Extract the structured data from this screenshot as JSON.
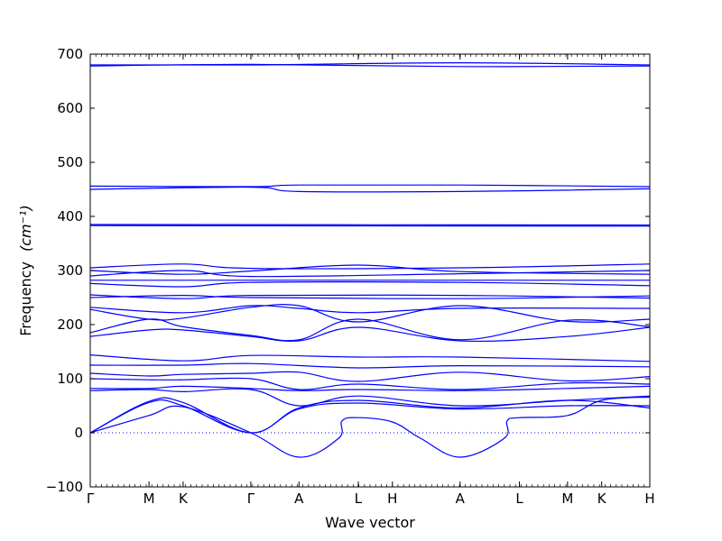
{
  "chart_data": {
    "type": "line",
    "xlabel": "Wave vector",
    "ylabel": "Frequency",
    "ylabel_unit": "(cm⁻¹)",
    "ylim": [
      -100,
      700
    ],
    "yticks": [
      -100,
      0,
      100,
      200,
      300,
      400,
      500,
      600,
      700
    ],
    "grid": false,
    "line_color": "#0000ff",
    "zero_line": {
      "y": 0,
      "style": "dotted"
    },
    "x_path_ticks": [
      {
        "label": "Γ",
        "x": 0.0
      },
      {
        "label": "M",
        "x": 0.105
      },
      {
        "label": "K",
        "x": 0.166
      },
      {
        "label": "Γ",
        "x": 0.287
      },
      {
        "label": "A",
        "x": 0.373
      },
      {
        "label": "L",
        "x": 0.479
      },
      {
        "label": "H",
        "x": 0.54
      },
      {
        "label": "A",
        "x": 0.661
      },
      {
        "label": "L",
        "x": 0.767
      },
      {
        "label": "M",
        "x": 0.853
      },
      {
        "label": "K",
        "x": 0.914
      },
      {
        "label": "H",
        "x": 1.0
      }
    ],
    "series": [
      {
        "values": [
          [
            0,
            680
          ],
          [
            0.287,
            680
          ],
          [
            0.661,
            684
          ],
          [
            1,
            680
          ]
        ]
      },
      {
        "values": [
          [
            0,
            678
          ],
          [
            0.287,
            681
          ],
          [
            0.661,
            677
          ],
          [
            1,
            678
          ]
        ]
      },
      {
        "values": [
          [
            0,
            456
          ],
          [
            0.287,
            455
          ],
          [
            0.373,
            458
          ],
          [
            0.661,
            458
          ],
          [
            1,
            455
          ]
        ]
      },
      {
        "values": [
          [
            0,
            450
          ],
          [
            0.287,
            454
          ],
          [
            0.373,
            446
          ],
          [
            0.661,
            446
          ],
          [
            1,
            451
          ]
        ]
      },
      {
        "values": [
          [
            0,
            385
          ],
          [
            1,
            384
          ]
        ]
      },
      {
        "values": [
          [
            0,
            383
          ],
          [
            1,
            382
          ]
        ]
      },
      {
        "values": [
          [
            0,
            305
          ],
          [
            0.166,
            312
          ],
          [
            0.287,
            304
          ],
          [
            0.661,
            305
          ],
          [
            1,
            312
          ]
        ]
      },
      {
        "values": [
          [
            0,
            300
          ],
          [
            0.166,
            293
          ],
          [
            0.287,
            299
          ],
          [
            0.479,
            310
          ],
          [
            0.661,
            298
          ],
          [
            1,
            293
          ]
        ]
      },
      {
        "values": [
          [
            0,
            290
          ],
          [
            0.166,
            300
          ],
          [
            0.287,
            289
          ],
          [
            0.661,
            294
          ],
          [
            1,
            300
          ]
        ]
      },
      {
        "values": [
          [
            0,
            282
          ],
          [
            0.287,
            282
          ],
          [
            0.661,
            282
          ],
          [
            1,
            282
          ]
        ]
      },
      {
        "values": [
          [
            0,
            276
          ],
          [
            0.166,
            270
          ],
          [
            0.287,
            278
          ],
          [
            0.661,
            278
          ],
          [
            1,
            272
          ]
        ]
      },
      {
        "values": [
          [
            0,
            255
          ],
          [
            0.166,
            248
          ],
          [
            0.287,
            254
          ],
          [
            0.661,
            254
          ],
          [
            1,
            249
          ]
        ]
      },
      {
        "values": [
          [
            0,
            250
          ],
          [
            0.166,
            254
          ],
          [
            0.287,
            250
          ],
          [
            0.661,
            248
          ],
          [
            1,
            253
          ]
        ]
      },
      {
        "values": [
          [
            0,
            232
          ],
          [
            0.166,
            222
          ],
          [
            0.287,
            235
          ],
          [
            0.373,
            230
          ],
          [
            0.479,
            222
          ],
          [
            0.661,
            230
          ],
          [
            1,
            230
          ]
        ]
      },
      {
        "values": [
          [
            0,
            228
          ],
          [
            0.105,
            210
          ],
          [
            0.166,
            212
          ],
          [
            0.287,
            232
          ],
          [
            0.373,
            235
          ],
          [
            0.479,
            205
          ],
          [
            0.661,
            235
          ],
          [
            0.853,
            206
          ],
          [
            1,
            210
          ]
        ]
      },
      {
        "values": [
          [
            0,
            185
          ],
          [
            0.105,
            210
          ],
          [
            0.166,
            196
          ],
          [
            0.287,
            180
          ],
          [
            0.373,
            172
          ],
          [
            0.479,
            210
          ],
          [
            0.661,
            172
          ],
          [
            0.853,
            208
          ],
          [
            1,
            196
          ]
        ]
      },
      {
        "values": [
          [
            0,
            178
          ],
          [
            0.105,
            190
          ],
          [
            0.166,
            190
          ],
          [
            0.287,
            178
          ],
          [
            0.373,
            170
          ],
          [
            0.479,
            195
          ],
          [
            0.661,
            170
          ],
          [
            0.853,
            178
          ],
          [
            1,
            195
          ]
        ]
      },
      {
        "values": [
          [
            0,
            144
          ],
          [
            0.166,
            133
          ],
          [
            0.287,
            143
          ],
          [
            0.479,
            140
          ],
          [
            0.661,
            140
          ],
          [
            1,
            132
          ]
        ]
      },
      {
        "values": [
          [
            0,
            125
          ],
          [
            0.166,
            125
          ],
          [
            0.287,
            128
          ],
          [
            0.479,
            120
          ],
          [
            0.661,
            124
          ],
          [
            1,
            122
          ]
        ]
      },
      {
        "values": [
          [
            0,
            110
          ],
          [
            0.105,
            105
          ],
          [
            0.166,
            108
          ],
          [
            0.287,
            110
          ],
          [
            0.373,
            112
          ],
          [
            0.479,
            95
          ],
          [
            0.661,
            112
          ],
          [
            0.853,
            96
          ],
          [
            1,
            104
          ]
        ]
      },
      {
        "values": [
          [
            0,
            100
          ],
          [
            0.105,
            98
          ],
          [
            0.166,
            98
          ],
          [
            0.287,
            100
          ],
          [
            0.373,
            80
          ],
          [
            0.479,
            90
          ],
          [
            0.661,
            80
          ],
          [
            0.853,
            92
          ],
          [
            1,
            90
          ]
        ]
      },
      {
        "values": [
          [
            0,
            82
          ],
          [
            0.105,
            82
          ],
          [
            0.166,
            86
          ],
          [
            0.287,
            82
          ],
          [
            0.373,
            78
          ],
          [
            0.479,
            80
          ],
          [
            0.661,
            78
          ],
          [
            0.853,
            82
          ],
          [
            1,
            86
          ]
        ]
      },
      {
        "values": [
          [
            0,
            78
          ],
          [
            0.105,
            80
          ],
          [
            0.166,
            76
          ],
          [
            0.287,
            80
          ],
          [
            0.373,
            50
          ],
          [
            0.479,
            68
          ],
          [
            0.661,
            50
          ],
          [
            0.853,
            60
          ],
          [
            1,
            68
          ]
        ]
      },
      {
        "values": [
          [
            0,
            0
          ],
          [
            0.105,
            58
          ],
          [
            0.166,
            56
          ],
          [
            0.287,
            0
          ],
          [
            0.373,
            46
          ],
          [
            0.479,
            60
          ],
          [
            0.661,
            46
          ],
          [
            0.853,
            60
          ],
          [
            1,
            46
          ]
        ]
      },
      {
        "values": [
          [
            0,
            0
          ],
          [
            0.105,
            56
          ],
          [
            0.166,
            50
          ],
          [
            0.287,
            0
          ],
          [
            0.373,
            44
          ],
          [
            0.479,
            55
          ],
          [
            0.661,
            44
          ],
          [
            0.853,
            50
          ],
          [
            1,
            50
          ]
        ]
      },
      {
        "values": [
          [
            0,
            0
          ],
          [
            0.105,
            32
          ],
          [
            0.166,
            48
          ],
          [
            0.287,
            0
          ],
          [
            0.373,
            -45
          ],
          [
            0.444,
            -10
          ],
          [
            0.45,
            22
          ],
          [
            0.479,
            28
          ],
          [
            0.54,
            20
          ],
          [
            0.59,
            -10
          ],
          [
            0.661,
            -45
          ],
          [
            0.74,
            -10
          ],
          [
            0.745,
            22
          ],
          [
            0.767,
            28
          ],
          [
            0.853,
            32
          ],
          [
            0.914,
            60
          ],
          [
            1,
            66
          ]
        ]
      }
    ]
  }
}
